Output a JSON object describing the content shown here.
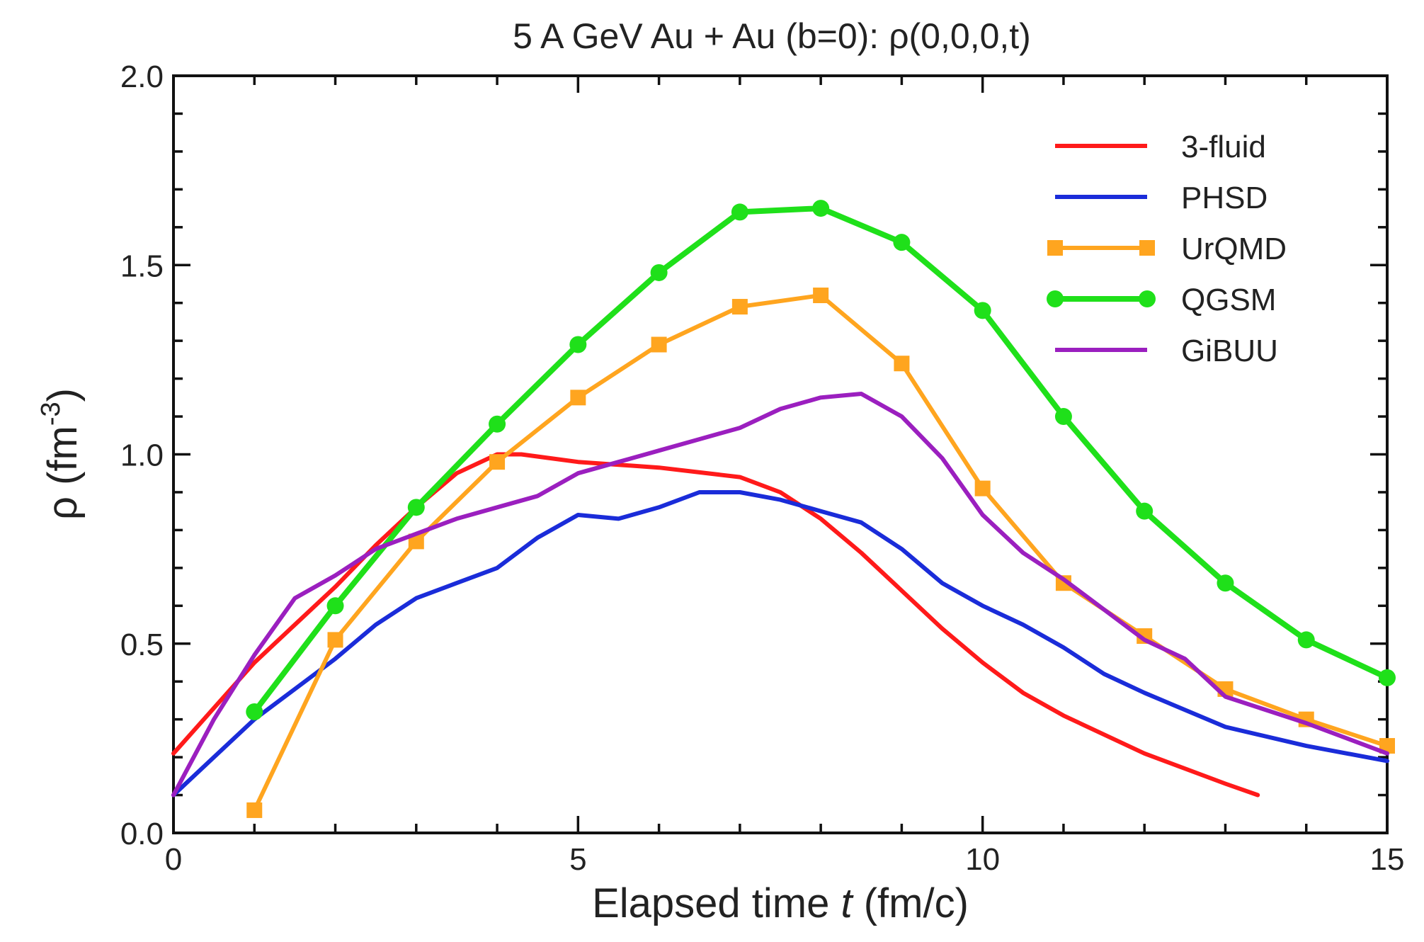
{
  "chart_data": {
    "type": "line",
    "title": "5 A GeV Au + Au (b=0):  ρ(0,0,0,t)",
    "xlabel_prefix": "Elapsed time ",
    "xlabel_var": "t",
    "xlabel_suffix": " (fm/c)",
    "ylabel_prefix": "ρ (fm",
    "ylabel_exp": "-3",
    "ylabel_suffix": ")",
    "xlim": [
      0,
      15
    ],
    "ylim": [
      0,
      2.0
    ],
    "x_ticks": [
      0,
      5,
      10,
      15
    ],
    "x_tick_labels": [
      "0",
      "5",
      "10",
      "15"
    ],
    "y_ticks": [
      0,
      0.5,
      1.0,
      1.5,
      2.0
    ],
    "y_tick_labels": [
      "0.0",
      "0.5",
      "1.0",
      "1.5",
      "2.0"
    ],
    "legend_position": "top-right",
    "series": [
      {
        "name": "3-fluid",
        "color": "#ff1a1a",
        "marker": "none",
        "x": [
          0,
          0.5,
          1,
          1.5,
          2,
          2.5,
          3,
          3.5,
          4,
          4.3,
          5,
          6,
          7,
          7.5,
          8,
          8.5,
          9,
          9.5,
          10,
          10.5,
          11,
          12,
          13,
          13.4
        ],
        "y": [
          0.21,
          0.33,
          0.45,
          0.55,
          0.65,
          0.76,
          0.86,
          0.95,
          1.0,
          1.0,
          0.98,
          0.965,
          0.94,
          0.9,
          0.83,
          0.74,
          0.64,
          0.54,
          0.45,
          0.37,
          0.31,
          0.21,
          0.13,
          0.1
        ]
      },
      {
        "name": "PHSD",
        "color": "#1a2cd9",
        "marker": "none",
        "x": [
          0,
          0.5,
          1,
          1.5,
          2,
          2.5,
          3,
          3.5,
          4,
          4.5,
          5,
          5.5,
          6,
          6.5,
          7,
          7.5,
          8,
          8.5,
          9,
          9.5,
          10,
          10.5,
          11,
          11.5,
          12,
          13,
          14,
          15
        ],
        "y": [
          0.1,
          0.2,
          0.3,
          0.38,
          0.46,
          0.55,
          0.62,
          0.66,
          0.7,
          0.78,
          0.84,
          0.83,
          0.86,
          0.9,
          0.9,
          0.88,
          0.85,
          0.82,
          0.75,
          0.66,
          0.6,
          0.55,
          0.49,
          0.42,
          0.37,
          0.28,
          0.23,
          0.19
        ]
      },
      {
        "name": "UrQMD",
        "color": "#ffa51f",
        "marker": "square",
        "x": [
          1,
          2,
          3,
          4,
          5,
          6,
          7,
          8,
          9,
          10,
          11,
          12,
          13,
          14,
          15
        ],
        "y": [
          0.06,
          0.51,
          0.77,
          0.98,
          1.15,
          1.29,
          1.39,
          1.42,
          1.24,
          0.91,
          0.66,
          0.52,
          0.38,
          0.3,
          0.23
        ]
      },
      {
        "name": "QGSM",
        "color": "#1fe01a",
        "marker": "circle",
        "x": [
          1,
          2,
          3,
          4,
          5,
          6,
          7,
          8,
          9,
          10,
          11,
          12,
          13,
          14,
          15
        ],
        "y": [
          0.32,
          0.6,
          0.86,
          1.08,
          1.29,
          1.48,
          1.64,
          1.65,
          1.56,
          1.38,
          1.1,
          0.85,
          0.66,
          0.51,
          0.41
        ]
      },
      {
        "name": "GiBUU",
        "color": "#9b1fbf",
        "marker": "none",
        "x": [
          0,
          0.5,
          1,
          1.5,
          2,
          2.5,
          3,
          3.5,
          4,
          4.5,
          5,
          5.5,
          6,
          6.5,
          7,
          7.5,
          8,
          8.5,
          9,
          9.5,
          10,
          10.5,
          11,
          11.5,
          12,
          12.5,
          13,
          14,
          15
        ],
        "y": [
          0.1,
          0.3,
          0.47,
          0.62,
          0.68,
          0.75,
          0.79,
          0.83,
          0.86,
          0.89,
          0.95,
          0.98,
          1.01,
          1.04,
          1.07,
          1.12,
          1.15,
          1.16,
          1.1,
          0.99,
          0.84,
          0.74,
          0.67,
          0.59,
          0.51,
          0.46,
          0.36,
          0.29,
          0.21
        ]
      }
    ]
  }
}
